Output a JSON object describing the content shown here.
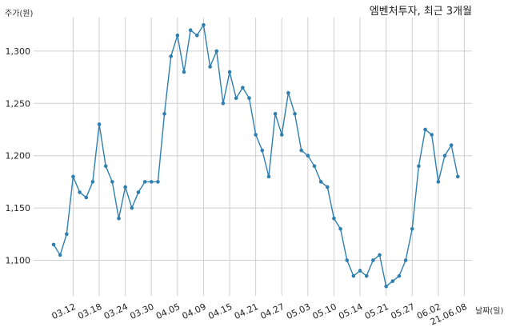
{
  "chart_data": {
    "type": "line",
    "title": "엠벤처투자, 최근 3개월",
    "ylabel": "주가(원)",
    "xlabel": "날짜(일)",
    "ylim": [
      1066,
      1332
    ],
    "grid": true,
    "yticks": [
      1100,
      1150,
      1200,
      1250,
      1300
    ],
    "ytick_labels": [
      "1,100",
      "1,150",
      "1,200",
      "1,250",
      "1,300"
    ],
    "xtick_labels": [
      {
        "label": "03.12",
        "index": 3
      },
      {
        "label": "03.18",
        "index": 7
      },
      {
        "label": "03.24",
        "index": 11
      },
      {
        "label": "03.30",
        "index": 15
      },
      {
        "label": "04.05",
        "index": 19
      },
      {
        "label": "04.09",
        "index": 23
      },
      {
        "label": "04.15",
        "index": 27
      },
      {
        "label": "04.21",
        "index": 31
      },
      {
        "label": "04.27",
        "index": 35
      },
      {
        "label": "05.03",
        "index": 39
      },
      {
        "label": "05.10",
        "index": 43
      },
      {
        "label": "05.14",
        "index": 47
      },
      {
        "label": "05.21",
        "index": 51
      },
      {
        "label": "05.27",
        "index": 55
      },
      {
        "label": "06.02",
        "index": 59
      },
      {
        "label": "21.06.08",
        "index": 63
      }
    ],
    "series": [
      {
        "color": "#2e7fb0",
        "values": [
          1115,
          1105,
          1125,
          1180,
          1165,
          1160,
          1175,
          1230,
          1190,
          1175,
          1140,
          1170,
          1150,
          1165,
          1175,
          1175,
          1175,
          1240,
          1295,
          1315,
          1280,
          1320,
          1315,
          1325,
          1285,
          1300,
          1250,
          1280,
          1255,
          1265,
          1255,
          1220,
          1205,
          1180,
          1240,
          1220,
          1260,
          1240,
          1205,
          1200,
          1190,
          1175,
          1170,
          1140,
          1130,
          1100,
          1085,
          1090,
          1085,
          1100,
          1105,
          1075,
          1080,
          1085,
          1100,
          1130,
          1190,
          1225,
          1220,
          1175,
          1200,
          1210,
          1180
        ]
      }
    ]
  }
}
